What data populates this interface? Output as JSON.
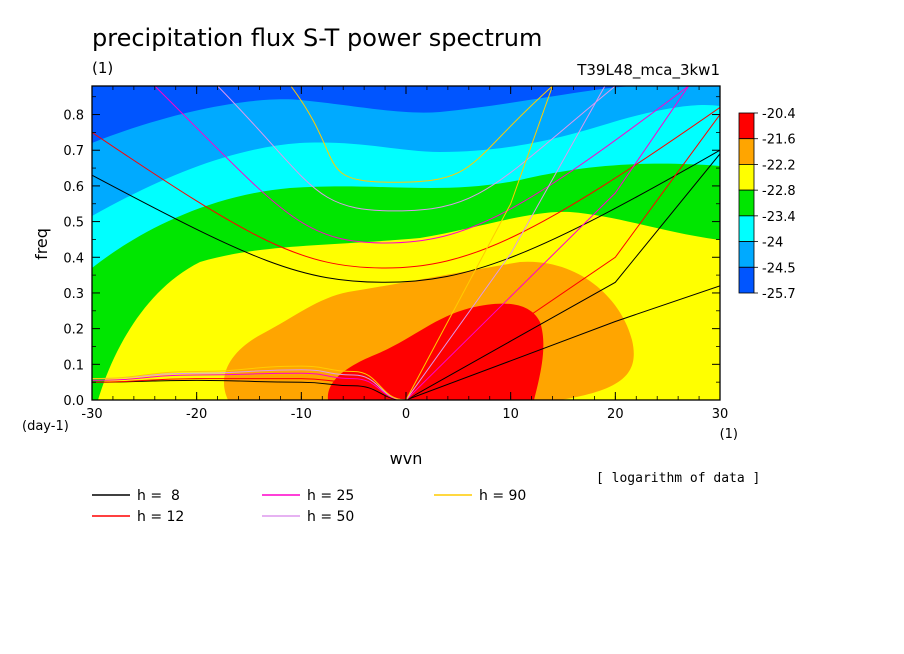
{
  "chart_data": {
    "type": "heatmap",
    "title": "precipitation flux S-T power spectrum",
    "unit_label": "(1)",
    "run_label": "T39L48_mca_3kw1",
    "xlabel": "wvn",
    "x_unit": "(1)",
    "ylabel": "freq",
    "y_unit": "(day-1)",
    "xlim": [
      -30,
      30
    ],
    "ylim": [
      0.0,
      0.88
    ],
    "x_ticks": [
      -30,
      -20,
      -10,
      0,
      10,
      20,
      30
    ],
    "x_tick_labels": [
      "-30",
      "-20",
      "-10",
      "0",
      "10",
      "20",
      "30"
    ],
    "y_ticks": [
      0.0,
      0.1,
      0.2,
      0.3,
      0.4,
      0.5,
      0.6,
      0.7,
      0.8
    ],
    "y_tick_labels": [
      "0.0",
      "0.1",
      "0.2",
      "0.3",
      "0.4",
      "0.5",
      "0.6",
      "0.7",
      "0.8"
    ],
    "colorbar": {
      "note": "[ logarithm of data ]",
      "labels": [
        "-20.4",
        "-21.6",
        "-22.2",
        "-22.8",
        "-23.4",
        "-24",
        "-24.5",
        "-25.7"
      ],
      "colors": [
        "#ff0000",
        "#ffa500",
        "#ffff00",
        "#00e600",
        "#00ffff",
        "#00aaff",
        "#0055ff"
      ]
    },
    "legend": [
      {
        "label": "h =  8",
        "color": "#000000",
        "h": 8
      },
      {
        "label": "h = 12",
        "color": "#ff0000",
        "h": 12
      },
      {
        "label": "h = 25",
        "color": "#ff00cc",
        "h": 25
      },
      {
        "label": "h = 50",
        "color": "#dd99ee",
        "h": 50
      },
      {
        "label": "h = 90",
        "color": "#ffcc00",
        "h": 90
      }
    ],
    "dispersion_curves": [
      {
        "h": 8,
        "color": "#000000",
        "kelvin": [
          [
            0,
            0.0
          ],
          [
            10,
            0.11
          ],
          [
            20,
            0.22
          ],
          [
            30,
            0.32
          ]
        ],
        "kelvin_steep": [
          [
            0,
            0.0
          ],
          [
            10,
            0.165
          ],
          [
            20,
            0.33
          ],
          [
            30,
            0.69
          ]
        ],
        "ig_min": 0.33,
        "ig_at": -2,
        "ig_left": [
          -30,
          0.63
        ],
        "ig_right": [
          30,
          0.7
        ],
        "rossby": [
          [
            -30,
            0.05
          ],
          [
            -20,
            0.055
          ],
          [
            -10,
            0.05
          ],
          [
            -5,
            0.04
          ],
          [
            0,
            0.0
          ]
        ]
      },
      {
        "h": 12,
        "color": "#ff0000",
        "kelvin": [
          [
            0,
            0.0
          ],
          [
            10,
            0.2
          ],
          [
            20,
            0.4
          ],
          [
            30,
            0.8
          ]
        ],
        "ig_min": 0.37,
        "ig_at": -2,
        "ig_left": [
          -30,
          0.75
        ],
        "ig_right": [
          30,
          0.82
        ],
        "rossby": [
          [
            -30,
            0.05
          ],
          [
            -20,
            0.06
          ],
          [
            -10,
            0.06
          ],
          [
            -5,
            0.05
          ],
          [
            0,
            0.0
          ]
        ]
      },
      {
        "h": 25,
        "color": "#ff00cc",
        "kelvin": [
          [
            0,
            0.0
          ],
          [
            10,
            0.29
          ],
          [
            20,
            0.58
          ],
          [
            27,
            0.88
          ]
        ],
        "ig_min": 0.44,
        "ig_at": -2,
        "ig_left": [
          -24,
          0.88
        ],
        "ig_right": [
          27,
          0.88
        ],
        "rossby": [
          [
            -30,
            0.055
          ],
          [
            -20,
            0.07
          ],
          [
            -10,
            0.075
          ],
          [
            -5,
            0.06
          ],
          [
            0,
            0.0
          ]
        ]
      },
      {
        "h": 50,
        "color": "#dd99ee",
        "kelvin": [
          [
            0,
            0.0
          ],
          [
            10,
            0.41
          ],
          [
            19,
            0.88
          ]
        ],
        "ig_min": 0.53,
        "ig_at": -1,
        "ig_left": [
          -18,
          0.88
        ],
        "ig_right": [
          20,
          0.88
        ],
        "rossby": [
          [
            -30,
            0.06
          ],
          [
            -20,
            0.075
          ],
          [
            -10,
            0.085
          ],
          [
            -5,
            0.07
          ],
          [
            0,
            0.0
          ]
        ]
      },
      {
        "h": 90,
        "color": "#ffcc00",
        "kelvin": [
          [
            0,
            0.0
          ],
          [
            10,
            0.55
          ],
          [
            14,
            0.88
          ]
        ],
        "ig_min": 0.61,
        "ig_at": -1,
        "ig_left": [
          -11,
          0.88
        ],
        "ig_right": [
          14,
          0.88
        ],
        "rossby": [
          [
            -30,
            0.06
          ],
          [
            -20,
            0.08
          ],
          [
            -10,
            0.095
          ],
          [
            -5,
            0.08
          ],
          [
            0,
            0.0
          ]
        ]
      }
    ]
  }
}
